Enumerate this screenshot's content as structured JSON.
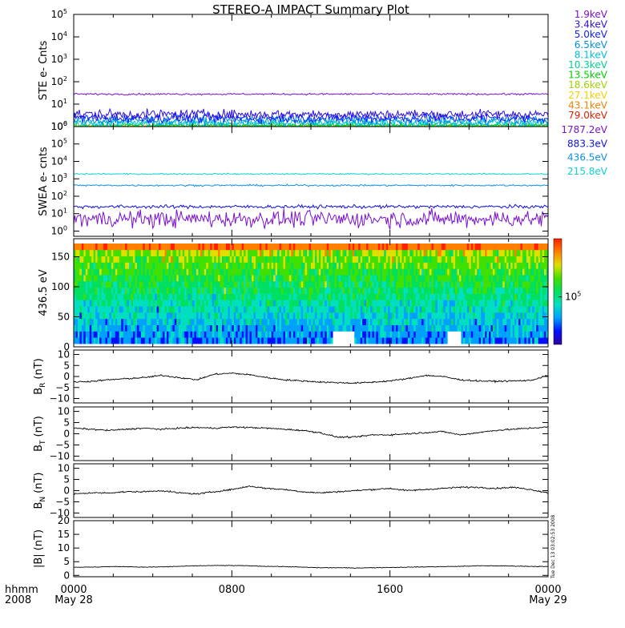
{
  "title": "STEREO-A IMPACT Summary Plot",
  "time_axis": {
    "row1_label": "hhmm",
    "row2_label": "2008",
    "ticks": [
      {
        "hour": 0,
        "time": "0000",
        "date": "May 28"
      },
      {
        "hour": 8,
        "time": "0800",
        "date": ""
      },
      {
        "hour": 16,
        "time": "1600",
        "date": ""
      },
      {
        "hour": 24,
        "time": "0000",
        "date": "May 29"
      }
    ]
  },
  "side_stamp": "Tue Dec 13 03:02:53 2008",
  "colorbar": {
    "label": "10",
    "label_exp": "5",
    "label_level": 0.45
  },
  "chart_data": [
    {
      "id": "ste",
      "type": "line",
      "ylabel": "STE e- Cnts",
      "yscale": "log",
      "ylim": [
        1,
        100000
      ],
      "ticks": [
        {
          "v": 1,
          "base": "10",
          "exp": "0"
        },
        {
          "v": 10,
          "base": "10",
          "exp": "1"
        },
        {
          "v": 100,
          "base": "10",
          "exp": "2"
        },
        {
          "v": 1000,
          "base": "10",
          "exp": "3"
        },
        {
          "v": 10000,
          "base": "10",
          "exp": "4"
        },
        {
          "v": 100000,
          "base": "10",
          "exp": "5"
        }
      ],
      "series": [
        {
          "name": "1.9keV",
          "color": "#7a10d0",
          "level": 28,
          "noise": 0.04
        },
        {
          "name": "3.4keV",
          "color": "#2a10e0",
          "level": 3.5,
          "noise": 0.22
        },
        {
          "name": "5.0keV",
          "color": "#1020ff",
          "level": 2.4,
          "noise": 0.22
        },
        {
          "name": "6.5keV",
          "color": "#0090e0",
          "level": 1.9,
          "noise": 0.2
        },
        {
          "name": "8.1keV",
          "color": "#00c0e0",
          "level": 1.5,
          "noise": 0.18
        },
        {
          "name": "10.3keV",
          "color": "#00d090",
          "level": 1.25,
          "noise": 0.15
        },
        {
          "name": "13.5keV",
          "color": "#00d000",
          "level": 1.1,
          "noise": 0.1
        },
        {
          "name": "18.6keV",
          "color": "#a0d000",
          "level": 1.05,
          "noise": 0.06
        },
        {
          "name": "27.1keV",
          "color": "#f0d000",
          "level": 1.02,
          "noise": 0.04
        },
        {
          "name": "43.1keV",
          "color": "#f08000",
          "level": 1.01,
          "noise": 0.02
        },
        {
          "name": "79.0keV",
          "color": "#e02000",
          "level": 1.0,
          "noise": 0.01
        }
      ]
    },
    {
      "id": "swea",
      "type": "line",
      "ylabel": "SWEA e- cnts",
      "yscale": "log",
      "ylim": [
        0.5,
        1000000
      ],
      "ticks": [
        {
          "v": 1,
          "base": "10",
          "exp": "0"
        },
        {
          "v": 10,
          "base": "10",
          "exp": "1"
        },
        {
          "v": 100,
          "base": "10",
          "exp": "2"
        },
        {
          "v": 1000,
          "base": "10",
          "exp": "3"
        },
        {
          "v": 10000,
          "base": "10",
          "exp": "4"
        },
        {
          "v": 100000,
          "base": "10",
          "exp": "5"
        },
        {
          "v": 1000000,
          "base": "10",
          "exp": "6"
        }
      ],
      "series": [
        {
          "name": "1787.2eV",
          "color": "#7a10d0",
          "level": 5,
          "noise": 0.5
        },
        {
          "name": "883.3eV",
          "color": "#1010e0",
          "level": 25,
          "noise": 0.1
        },
        {
          "name": "436.5eV",
          "color": "#1090e0",
          "level": 420,
          "noise": 0.05
        },
        {
          "name": "215.8eV",
          "color": "#10d0d0",
          "level": 1900,
          "noise": 0.04
        }
      ]
    },
    {
      "id": "pad",
      "type": "heatmap",
      "ylabel": "436.5 eV",
      "ylim": [
        0,
        180
      ],
      "ticks": [
        {
          "v": 0,
          "label": "0"
        },
        {
          "v": 50,
          "label": "50"
        },
        {
          "v": 100,
          "label": "100"
        },
        {
          "v": 150,
          "label": "150"
        }
      ],
      "colormap": [
        "#3000a0",
        "#0010ff",
        "#00a0ff",
        "#00e0c0",
        "#00e060",
        "#40e000",
        "#e0e000",
        "#ff8000",
        "#ff2000"
      ]
    },
    {
      "id": "br",
      "type": "line",
      "ylabel": "B",
      "ylabel_sub": "R",
      "unit": "(nT)",
      "ylim": [
        -12,
        12
      ],
      "ticks": [
        {
          "v": 10,
          "label": "10"
        },
        {
          "v": 5,
          "label": "5"
        },
        {
          "v": 0,
          "label": "0"
        },
        {
          "v": -5,
          "label": "−5"
        },
        {
          "v": -10,
          "label": "−10"
        }
      ],
      "values": [
        -2.5,
        -2.2,
        -1.5,
        -1.0,
        -0.5,
        0.5,
        -0.5,
        -1.5,
        1.0,
        1.5,
        0.8,
        -0.5,
        -1.5,
        -2.0,
        -2.5,
        -2.8,
        -3.0,
        -2.6,
        -2.0,
        -1.0,
        0.5,
        0.0,
        -1.5,
        -2.0,
        -2.2,
        -2.0,
        -1.8,
        0.5
      ]
    },
    {
      "id": "bt",
      "type": "line",
      "ylabel": "B",
      "ylabel_sub": "T",
      "unit": "(nT)",
      "ylim": [
        -12,
        12
      ],
      "ticks": [
        {
          "v": 10,
          "label": "10"
        },
        {
          "v": 5,
          "label": "5"
        },
        {
          "v": 0,
          "label": "0"
        },
        {
          "v": -5,
          "label": "−5"
        },
        {
          "v": -10,
          "label": "−10"
        }
      ],
      "values": [
        2.5,
        2.0,
        1.5,
        2.0,
        2.5,
        2.0,
        2.5,
        2.8,
        2.5,
        3.0,
        2.8,
        2.5,
        2.0,
        1.5,
        0.5,
        -1.5,
        -1.5,
        -0.5,
        -0.5,
        0.0,
        0.5,
        1.0,
        -0.5,
        0.5,
        1.5,
        2.0,
        2.5,
        3.0
      ]
    },
    {
      "id": "bn",
      "type": "line",
      "ylabel": "B",
      "ylabel_sub": "N",
      "unit": "(nT)",
      "ylim": [
        -12,
        12
      ],
      "ticks": [
        {
          "v": 10,
          "label": "10"
        },
        {
          "v": 5,
          "label": "5"
        },
        {
          "v": 0,
          "label": "0"
        },
        {
          "v": -5,
          "label": "−5"
        },
        {
          "v": -10,
          "label": "−10"
        }
      ],
      "values": [
        -1.5,
        -1.0,
        -1.0,
        -0.5,
        -0.5,
        0.0,
        -1.0,
        -1.5,
        -0.5,
        0.5,
        2.0,
        1.0,
        0.5,
        -0.5,
        -1.0,
        -0.5,
        0.0,
        0.5,
        1.0,
        0.0,
        0.5,
        1.0,
        1.5,
        1.5,
        1.0,
        1.5,
        0.5,
        -1.0
      ]
    },
    {
      "id": "bmag",
      "type": "line",
      "ylabel": "|B|",
      "unit": "(nT)",
      "ylim": [
        -0.5,
        20
      ],
      "ticks": [
        {
          "v": 20,
          "label": "20"
        },
        {
          "v": 15,
          "label": "15"
        },
        {
          "v": 10,
          "label": "10"
        },
        {
          "v": 5,
          "label": "5"
        },
        {
          "v": 0,
          "label": "0"
        }
      ],
      "values": [
        3.0,
        3.0,
        3.2,
        3.2,
        3.0,
        3.1,
        3.3,
        3.5,
        3.6,
        3.6,
        3.5,
        3.3,
        3.2,
        3.0,
        2.8,
        2.8,
        2.7,
        2.8,
        2.9,
        3.0,
        3.1,
        3.2,
        3.3,
        3.5,
        3.5,
        3.4,
        3.3,
        3.2
      ]
    }
  ]
}
